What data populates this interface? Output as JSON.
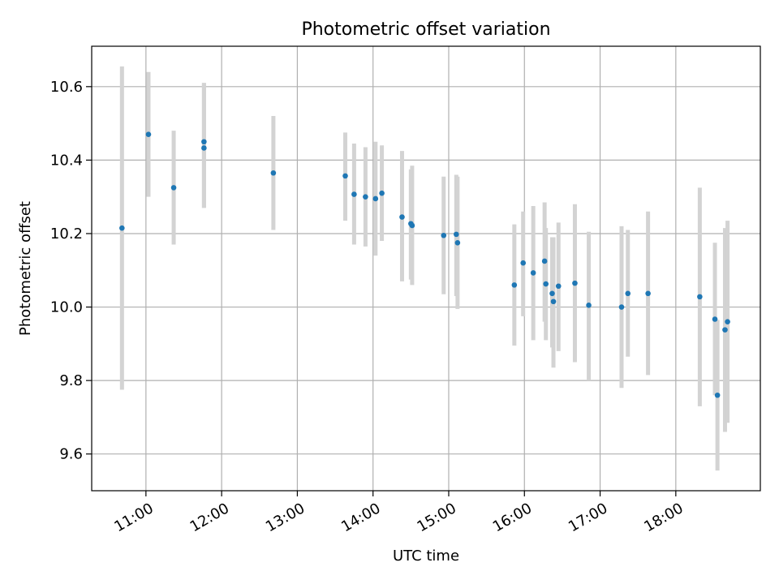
{
  "chart_data": {
    "type": "scatter",
    "title": "Photometric offset variation",
    "xlabel": "UTC time",
    "ylabel": "Photometric offset",
    "x_is_time": true,
    "xlim": [
      "10:17",
      "19:07"
    ],
    "ylim": [
      9.5,
      10.71
    ],
    "x_ticks": [
      "11:00",
      "12:00",
      "13:00",
      "14:00",
      "15:00",
      "16:00",
      "17:00",
      "18:00"
    ],
    "y_ticks": [
      9.6,
      9.8,
      10.0,
      10.2,
      10.4,
      10.6
    ],
    "y_tick_labels": [
      "9.6",
      "9.8",
      "10.0",
      "10.2",
      "10.4",
      "10.6"
    ],
    "grid": true,
    "colors": {
      "point": "#1f77b4",
      "errorbar": "#d3d3d3",
      "grid": "#b0b0b0"
    },
    "series": [
      {
        "points": [
          {
            "t": "10:41",
            "y": 10.215,
            "lo": 9.775,
            "hi": 10.655
          },
          {
            "t": "11:02",
            "y": 10.47,
            "lo": 10.3,
            "hi": 10.64
          },
          {
            "t": "11:22",
            "y": 10.325,
            "lo": 10.17,
            "hi": 10.48
          },
          {
            "t": "11:46",
            "y": 10.45,
            "lo": 10.27,
            "hi": 10.61
          },
          {
            "t": "11:46",
            "y": 10.433,
            "lo": 10.27,
            "hi": 10.61
          },
          {
            "t": "12:41",
            "y": 10.365,
            "lo": 10.21,
            "hi": 10.52
          },
          {
            "t": "13:38",
            "y": 10.357,
            "lo": 10.235,
            "hi": 10.475
          },
          {
            "t": "13:45",
            "y": 10.307,
            "lo": 10.17,
            "hi": 10.445
          },
          {
            "t": "13:54",
            "y": 10.3,
            "lo": 10.165,
            "hi": 10.435
          },
          {
            "t": "14:02",
            "y": 10.295,
            "lo": 10.14,
            "hi": 10.45
          },
          {
            "t": "14:07",
            "y": 10.31,
            "lo": 10.18,
            "hi": 10.44
          },
          {
            "t": "14:23",
            "y": 10.245,
            "lo": 10.07,
            "hi": 10.425
          },
          {
            "t": "14:30",
            "y": 10.227,
            "lo": 10.075,
            "hi": 10.375
          },
          {
            "t": "14:31",
            "y": 10.222,
            "lo": 10.06,
            "hi": 10.385
          },
          {
            "t": "14:56",
            "y": 10.195,
            "lo": 10.035,
            "hi": 10.355
          },
          {
            "t": "15:06",
            "y": 10.198,
            "lo": 10.03,
            "hi": 10.36
          },
          {
            "t": "15:07",
            "y": 10.175,
            "lo": 9.995,
            "hi": 10.355
          },
          {
            "t": "15:52",
            "y": 10.06,
            "lo": 9.895,
            "hi": 10.225
          },
          {
            "t": "15:59",
            "y": 10.12,
            "lo": 9.975,
            "hi": 10.26
          },
          {
            "t": "16:07",
            "y": 10.093,
            "lo": 9.91,
            "hi": 10.275
          },
          {
            "t": "16:16",
            "y": 10.125,
            "lo": 9.96,
            "hi": 10.285
          },
          {
            "t": "16:17",
            "y": 10.063,
            "lo": 9.91,
            "hi": 10.215
          },
          {
            "t": "16:22",
            "y": 10.037,
            "lo": 9.89,
            "hi": 10.19
          },
          {
            "t": "16:23",
            "y": 10.015,
            "lo": 9.835,
            "hi": 10.19
          },
          {
            "t": "16:27",
            "y": 10.057,
            "lo": 9.88,
            "hi": 10.23
          },
          {
            "t": "16:40",
            "y": 10.065,
            "lo": 9.85,
            "hi": 10.28
          },
          {
            "t": "16:51",
            "y": 10.005,
            "lo": 9.8,
            "hi": 10.205
          },
          {
            "t": "17:17",
            "y": 10.0,
            "lo": 9.78,
            "hi": 10.22
          },
          {
            "t": "17:22",
            "y": 10.037,
            "lo": 9.865,
            "hi": 10.21
          },
          {
            "t": "17:38",
            "y": 10.037,
            "lo": 9.815,
            "hi": 10.26
          },
          {
            "t": "18:19",
            "y": 10.028,
            "lo": 9.73,
            "hi": 10.325
          },
          {
            "t": "18:31",
            "y": 9.967,
            "lo": 9.76,
            "hi": 10.175
          },
          {
            "t": "18:33",
            "y": 9.76,
            "lo": 9.555,
            "hi": 9.965
          },
          {
            "t": "18:39",
            "y": 9.938,
            "lo": 9.66,
            "hi": 10.215
          },
          {
            "t": "18:41",
            "y": 9.96,
            "lo": 9.685,
            "hi": 10.235
          }
        ]
      }
    ]
  }
}
